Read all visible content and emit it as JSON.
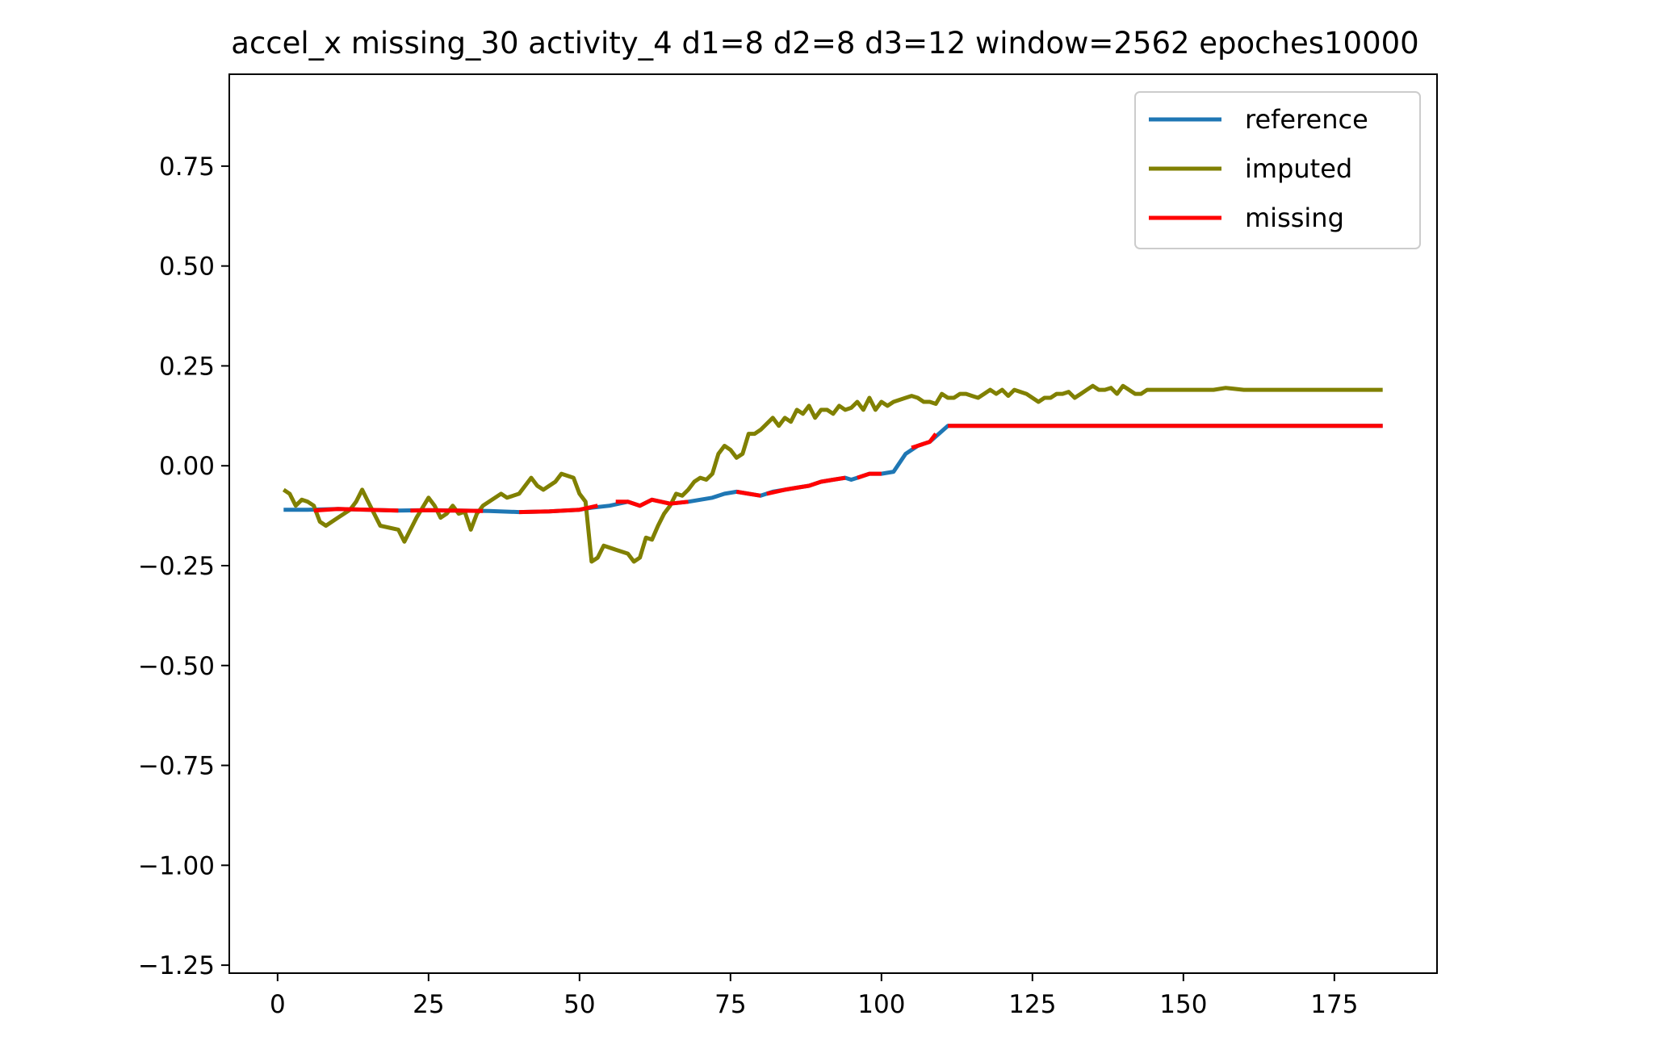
{
  "chart_data": {
    "type": "line",
    "title": "accel_x missing_30 activity_4 d1=8 d2=8 d3=12 window=2562 epoches10000",
    "xlabel": "",
    "ylabel": "",
    "xlim": [
      -8,
      192
    ],
    "ylim": [
      -1.27,
      0.98
    ],
    "xticks": [
      0,
      25,
      50,
      75,
      100,
      125,
      150,
      175
    ],
    "yticks": [
      0.75,
      0.5,
      0.25,
      0.0,
      -0.25,
      -0.5,
      -0.75,
      -1.0,
      -1.25
    ],
    "ytick_labels": [
      "0.75",
      "0.50",
      "0.25",
      "0.00",
      "−0.25",
      "−0.50",
      "−0.75",
      "−1.00",
      "−1.25"
    ],
    "grid": false,
    "legend_position": "top-right",
    "colors": {
      "reference": "#1f77b4",
      "imputed": "#808000",
      "missing": "#ff0000"
    },
    "series": [
      {
        "name": "reference",
        "x": [
          1,
          5,
          10,
          15,
          20,
          25,
          30,
          35,
          40,
          45,
          50,
          52,
          55,
          58,
          60,
          62,
          65,
          68,
          70,
          72,
          74,
          76,
          78,
          80,
          82,
          84,
          86,
          88,
          90,
          92,
          94,
          95,
          96,
          98,
          100,
          102,
          104,
          106,
          108,
          111,
          115,
          120,
          130,
          140,
          150,
          160,
          170,
          180,
          183
        ],
        "y": [
          -0.11,
          -0.11,
          -0.108,
          -0.11,
          -0.112,
          -0.111,
          -0.112,
          -0.113,
          -0.116,
          -0.114,
          -0.11,
          -0.105,
          -0.1,
          -0.09,
          -0.1,
          -0.085,
          -0.095,
          -0.09,
          -0.085,
          -0.08,
          -0.07,
          -0.065,
          -0.07,
          -0.075,
          -0.065,
          -0.06,
          -0.055,
          -0.05,
          -0.04,
          -0.035,
          -0.03,
          -0.035,
          -0.03,
          -0.02,
          -0.02,
          -0.015,
          0.03,
          0.05,
          0.06,
          0.1,
          0.1,
          0.1,
          0.1,
          0.1,
          0.1,
          0.1,
          0.1,
          0.1,
          0.1
        ]
      },
      {
        "name": "imputed",
        "x": [
          1,
          2,
          3,
          4,
          5,
          6,
          7,
          8,
          10,
          12,
          13,
          14,
          15,
          17,
          20,
          21,
          23,
          25,
          26,
          27,
          28,
          29,
          30,
          31,
          32,
          33,
          34,
          35,
          37,
          38,
          40,
          42,
          43,
          44,
          45,
          46,
          47,
          48,
          49,
          50,
          51,
          52,
          53,
          54,
          56,
          58,
          59,
          60,
          61,
          62,
          63,
          64,
          65,
          66,
          67,
          68,
          69,
          70,
          71,
          72,
          73,
          74,
          75,
          76,
          77,
          78,
          79,
          80,
          82,
          83,
          84,
          85,
          86,
          87,
          88,
          89,
          90,
          91,
          92,
          93,
          94,
          95,
          96,
          97,
          98,
          99,
          100,
          101,
          102,
          103,
          104,
          105,
          106,
          107,
          108,
          109,
          110,
          111,
          112,
          113,
          114,
          115,
          116,
          117,
          118,
          119,
          120,
          121,
          122,
          123,
          124,
          125,
          126,
          127,
          128,
          129,
          130,
          131,
          132,
          133,
          134,
          135,
          136,
          137,
          138,
          139,
          140,
          141,
          142,
          143,
          144,
          145,
          150,
          155,
          157,
          160,
          165,
          170,
          175,
          180,
          183
        ],
        "y": [
          -0.06,
          -0.07,
          -0.1,
          -0.085,
          -0.09,
          -0.1,
          -0.14,
          -0.15,
          -0.13,
          -0.11,
          -0.09,
          -0.06,
          -0.09,
          -0.15,
          -0.16,
          -0.19,
          -0.13,
          -0.08,
          -0.1,
          -0.13,
          -0.12,
          -0.1,
          -0.12,
          -0.115,
          -0.16,
          -0.12,
          -0.1,
          -0.09,
          -0.07,
          -0.08,
          -0.07,
          -0.03,
          -0.05,
          -0.06,
          -0.05,
          -0.04,
          -0.02,
          -0.025,
          -0.03,
          -0.07,
          -0.09,
          -0.24,
          -0.23,
          -0.2,
          -0.21,
          -0.22,
          -0.24,
          -0.23,
          -0.18,
          -0.185,
          -0.15,
          -0.12,
          -0.1,
          -0.07,
          -0.075,
          -0.06,
          -0.04,
          -0.03,
          -0.035,
          -0.02,
          0.03,
          0.05,
          0.04,
          0.02,
          0.03,
          0.08,
          0.08,
          0.09,
          0.12,
          0.1,
          0.12,
          0.11,
          0.14,
          0.13,
          0.15,
          0.12,
          0.14,
          0.14,
          0.13,
          0.15,
          0.14,
          0.145,
          0.16,
          0.14,
          0.17,
          0.14,
          0.16,
          0.15,
          0.16,
          0.165,
          0.17,
          0.175,
          0.17,
          0.16,
          0.16,
          0.155,
          0.18,
          0.17,
          0.17,
          0.18,
          0.18,
          0.175,
          0.17,
          0.18,
          0.19,
          0.18,
          0.19,
          0.175,
          0.19,
          0.185,
          0.18,
          0.17,
          0.16,
          0.17,
          0.17,
          0.18,
          0.18,
          0.185,
          0.17,
          0.18,
          0.19,
          0.2,
          0.19,
          0.19,
          0.195,
          0.18,
          0.2,
          0.19,
          0.18,
          0.18,
          0.19,
          0.19,
          0.19,
          0.19,
          0.195,
          0.19,
          0.19,
          0.19,
          0.19,
          0.19,
          0.19
        ]
      },
      {
        "name": "missing",
        "segments": [
          {
            "x": [
              6,
              10,
              15,
              20
            ],
            "y": [
              -0.112,
              -0.108,
              -0.11,
              -0.112
            ]
          },
          {
            "x": [
              22,
              25,
              28,
              30,
              34
            ],
            "y": [
              -0.112,
              -0.111,
              -0.112,
              -0.112,
              -0.113
            ]
          },
          {
            "x": [
              40,
              45,
              50,
              53
            ],
            "y": [
              -0.116,
              -0.114,
              -0.11,
              -0.1
            ]
          },
          {
            "x": [
              56,
              58,
              60,
              62,
              65,
              68
            ],
            "y": [
              -0.09,
              -0.09,
              -0.1,
              -0.085,
              -0.095,
              -0.09
            ]
          },
          {
            "x": [
              76,
              78,
              80
            ],
            "y": [
              -0.065,
              -0.07,
              -0.075
            ]
          },
          {
            "x": [
              81,
              84,
              86,
              88,
              90,
              92,
              94
            ],
            "y": [
              -0.07,
              -0.06,
              -0.055,
              -0.05,
              -0.04,
              -0.035,
              -0.03
            ]
          },
          {
            "x": [
              96,
              98,
              100
            ],
            "y": [
              -0.03,
              -0.02,
              -0.02
            ]
          },
          {
            "x": [
              105,
              106,
              108,
              109
            ],
            "y": [
              0.045,
              0.05,
              0.06,
              0.08
            ]
          },
          {
            "x": [
              111,
              120,
              130,
              140,
              150,
              160,
              170,
              180,
              183
            ],
            "y": [
              0.1,
              0.1,
              0.1,
              0.1,
              0.1,
              0.1,
              0.1,
              0.1,
              0.1
            ]
          }
        ]
      }
    ]
  }
}
